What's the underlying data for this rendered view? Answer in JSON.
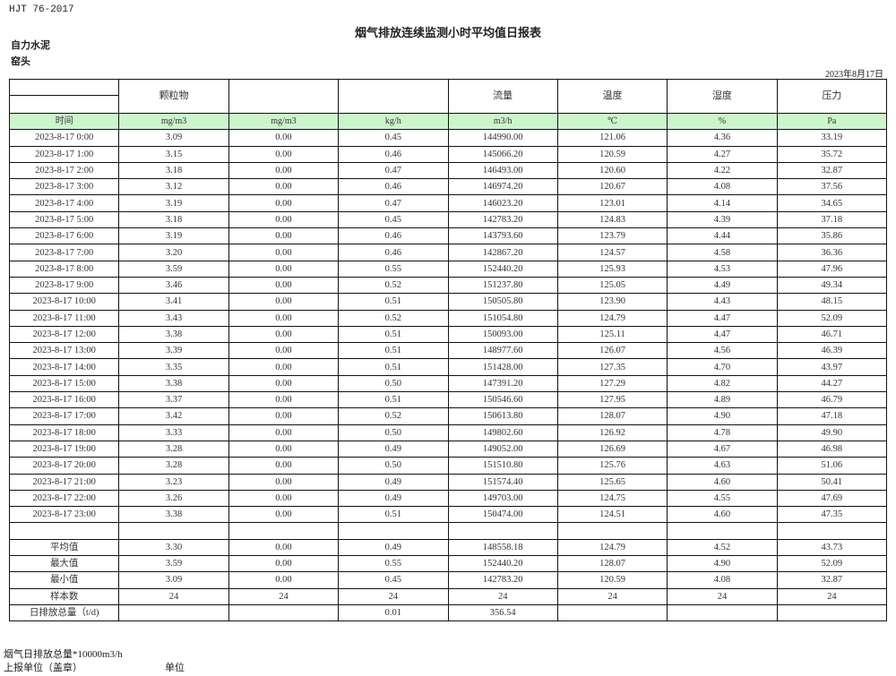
{
  "standard": "HJT  76-2017",
  "title": "烟气排放连续监测小时平均值日报表",
  "company": "自力水泥",
  "unit": "窑头",
  "date": "2023年8月17日",
  "colors": {
    "units_row_bg": "#ccf5cc",
    "border": "#111111"
  },
  "header": [
    "",
    "颗粒物",
    "",
    "",
    "流量",
    "温度",
    "湿度",
    "压力"
  ],
  "units": [
    "时间",
    "mg/m3",
    "mg/m3",
    "kg/h",
    "m3/h",
    "℃",
    "%",
    "Pa"
  ],
  "rows": [
    [
      "2023-8-17 0:00",
      "3.09",
      "0.00",
      "0.45",
      "144990.00",
      "121.06",
      "4.36",
      "33.19"
    ],
    [
      "2023-8-17 1:00",
      "3.15",
      "0.00",
      "0.46",
      "145066.20",
      "120.59",
      "4.27",
      "35.72"
    ],
    [
      "2023-8-17 2:00",
      "3.18",
      "0.00",
      "0.47",
      "146493.00",
      "120.60",
      "4.22",
      "32.87"
    ],
    [
      "2023-8-17 3:00",
      "3.12",
      "0.00",
      "0.46",
      "146974.20",
      "120.67",
      "4.08",
      "37.56"
    ],
    [
      "2023-8-17 4:00",
      "3.19",
      "0.00",
      "0.47",
      "146023.20",
      "123.01",
      "4.14",
      "34.65"
    ],
    [
      "2023-8-17 5:00",
      "3.18",
      "0.00",
      "0.45",
      "142783.20",
      "124.83",
      "4.39",
      "37.18"
    ],
    [
      "2023-8-17 6:00",
      "3.19",
      "0.00",
      "0.46",
      "143793.60",
      "123.79",
      "4.44",
      "35.86"
    ],
    [
      "2023-8-17 7:00",
      "3.20",
      "0.00",
      "0.46",
      "142867.20",
      "124.57",
      "4.58",
      "36.36"
    ],
    [
      "2023-8-17 8:00",
      "3.59",
      "0.00",
      "0.55",
      "152440.20",
      "125.93",
      "4.53",
      "47.96"
    ],
    [
      "2023-8-17 9:00",
      "3.46",
      "0.00",
      "0.52",
      "151237.80",
      "125.05",
      "4.49",
      "49.34"
    ],
    [
      "2023-8-17 10:00",
      "3.41",
      "0.00",
      "0.51",
      "150505.80",
      "123.90",
      "4.43",
      "48.15"
    ],
    [
      "2023-8-17 11:00",
      "3.43",
      "0.00",
      "0.52",
      "151054.80",
      "124.79",
      "4.47",
      "52.09"
    ],
    [
      "2023-8-17 12:00",
      "3.38",
      "0.00",
      "0.51",
      "150093.00",
      "125.11",
      "4.47",
      "46.71"
    ],
    [
      "2023-8-17 13:00",
      "3.39",
      "0.00",
      "0.51",
      "148977.60",
      "126.07",
      "4.56",
      "46.39"
    ],
    [
      "2023-8-17 14:00",
      "3.35",
      "0.00",
      "0.51",
      "151428.00",
      "127.35",
      "4.70",
      "43.97"
    ],
    [
      "2023-8-17 15:00",
      "3.38",
      "0.00",
      "0.50",
      "147391.20",
      "127.29",
      "4.82",
      "44.27"
    ],
    [
      "2023-8-17 16:00",
      "3.37",
      "0.00",
      "0.51",
      "150546.60",
      "127.95",
      "4.89",
      "46.79"
    ],
    [
      "2023-8-17 17:00",
      "3.42",
      "0.00",
      "0.52",
      "150613.80",
      "128.07",
      "4.90",
      "47.18"
    ],
    [
      "2023-8-17 18:00",
      "3.33",
      "0.00",
      "0.50",
      "149802.60",
      "126.92",
      "4.78",
      "49.90"
    ],
    [
      "2023-8-17 19:00",
      "3.28",
      "0.00",
      "0.49",
      "149052.00",
      "126.69",
      "4.67",
      "46.98"
    ],
    [
      "2023-8-17 20:00",
      "3.28",
      "0.00",
      "0.50",
      "151510.80",
      "125.76",
      "4.63",
      "51.06"
    ],
    [
      "2023-8-17 21:00",
      "3.23",
      "0.00",
      "0.49",
      "151574.40",
      "125.65",
      "4.60",
      "50.41"
    ],
    [
      "2023-8-17 22:00",
      "3.26",
      "0.00",
      "0.49",
      "149703.00",
      "124.75",
      "4.55",
      "47.69"
    ],
    [
      "2023-8-17 23:00",
      "3.38",
      "0.00",
      "0.51",
      "150474.00",
      "124.51",
      "4.60",
      "47.35"
    ]
  ],
  "summary": [
    [
      "平均值",
      "3.30",
      "0.00",
      "0.49",
      "148558.18",
      "124.79",
      "4.52",
      "43.73"
    ],
    [
      "最大值",
      "3.59",
      "0.00",
      "0.55",
      "152440.20",
      "128.07",
      "4.90",
      "52.09"
    ],
    [
      "最小值",
      "3.09",
      "0.00",
      "0.45",
      "142783.20",
      "120.59",
      "4.08",
      "32.87"
    ],
    [
      "样本数",
      "24",
      "24",
      "24",
      "24",
      "24",
      "24",
      "24"
    ],
    [
      "日排放总量（t/d)",
      "",
      "",
      "0.01",
      "356.54",
      "",
      "",
      ""
    ]
  ],
  "footer": {
    "note": "烟气日排放总量*10000m3/h",
    "reporter": "上报单位（盖章）",
    "unit_label": "单位"
  }
}
